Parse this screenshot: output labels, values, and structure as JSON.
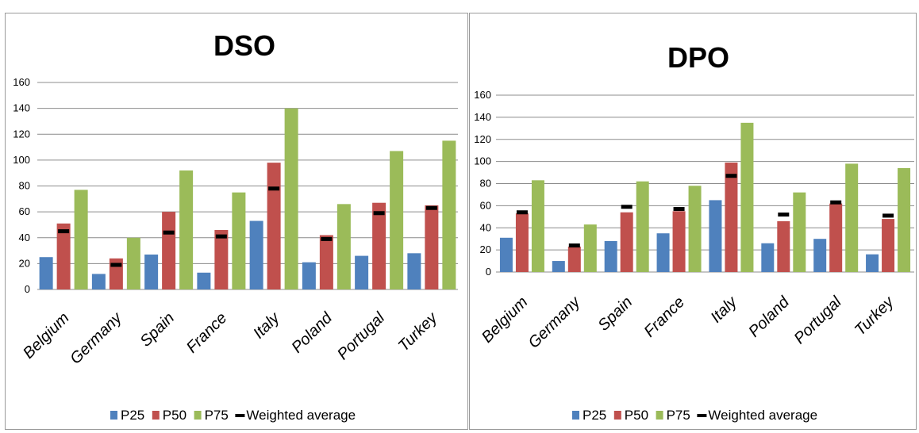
{
  "header_strip": {
    "text": ""
  },
  "colors": {
    "P25": "#4f81bd",
    "P50": "#c0504d",
    "P75": "#9bbb59",
    "weighted": "#000000",
    "grid": "#8c8c8c"
  },
  "chart_data": [
    {
      "type": "bar",
      "title": "DSO",
      "xlabel": "",
      "ylabel": "",
      "ylim": [
        0,
        160
      ],
      "yticks": [
        0,
        20,
        40,
        60,
        80,
        100,
        120,
        140,
        160
      ],
      "categories": [
        "Belgium",
        "Germany",
        "Spain",
        "France",
        "Italy",
        "Poland",
        "Portugal",
        "Turkey"
      ],
      "series": [
        {
          "name": "P25",
          "values": [
            25,
            12,
            27,
            13,
            53,
            21,
            26,
            28
          ]
        },
        {
          "name": "P50",
          "values": [
            51,
            24,
            60,
            46,
            98,
            42,
            67,
            65
          ]
        },
        {
          "name": "P75",
          "values": [
            77,
            40,
            92,
            75,
            140,
            66,
            107,
            115
          ]
        },
        {
          "name": "Weighted average",
          "values": [
            45,
            19,
            44,
            41,
            78,
            39,
            59,
            63
          ]
        }
      ],
      "legend_position": "bottom",
      "grid": true
    },
    {
      "type": "bar",
      "title": "DPO",
      "xlabel": "",
      "ylabel": "",
      "ylim": [
        0,
        160
      ],
      "yticks": [
        0,
        20,
        40,
        60,
        80,
        100,
        120,
        140,
        160
      ],
      "categories": [
        "Belgium",
        "Germany",
        "Spain",
        "France",
        "Italy",
        "Poland",
        "Portugal",
        "Turkey"
      ],
      "series": [
        {
          "name": "P25",
          "values": [
            31,
            10,
            28,
            35,
            65,
            26,
            30,
            16
          ]
        },
        {
          "name": "P50",
          "values": [
            53,
            23,
            54,
            55,
            99,
            46,
            62,
            48
          ]
        },
        {
          "name": "P75",
          "values": [
            83,
            43,
            82,
            78,
            135,
            72,
            98,
            94
          ]
        },
        {
          "name": "Weighted average",
          "values": [
            54,
            24,
            59,
            57,
            87,
            52,
            63,
            51
          ]
        }
      ],
      "legend_position": "bottom",
      "grid": true
    }
  ]
}
